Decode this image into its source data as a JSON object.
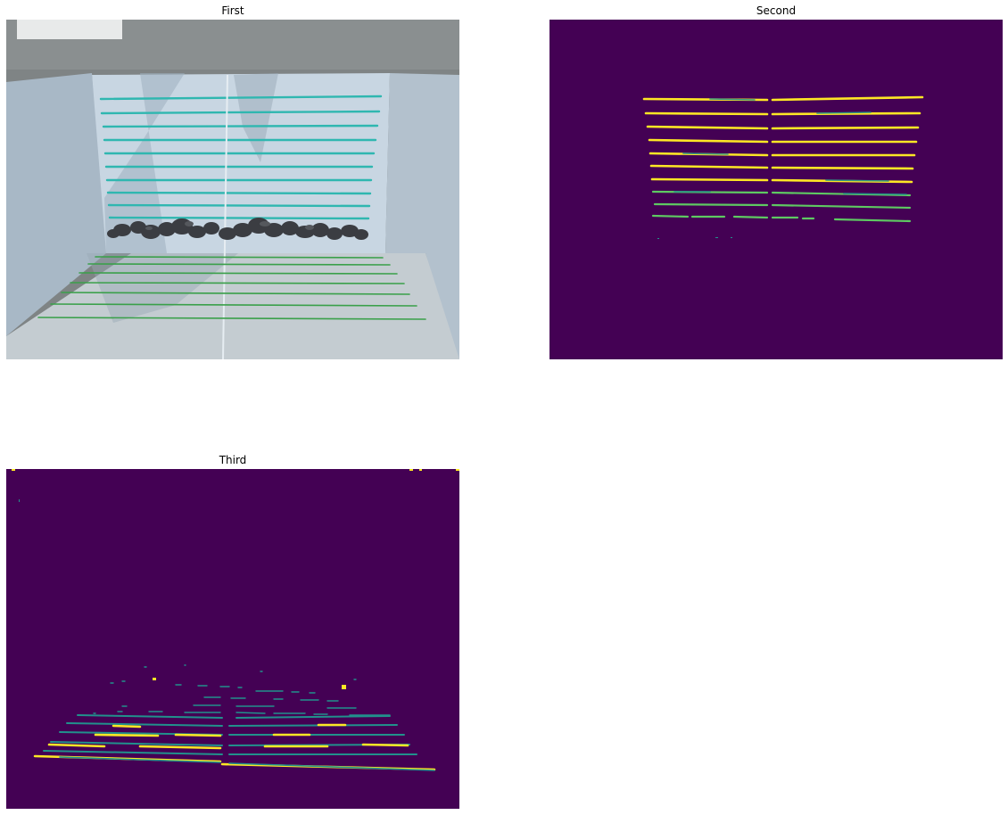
{
  "panels": {
    "first": {
      "title": "First"
    },
    "second": {
      "title": "Second"
    },
    "third": {
      "title": "Third"
    }
  },
  "colors": {
    "mask_background": "#440154",
    "mask_high": "#fde725",
    "mask_mid": "#21918c",
    "mask_mid_light": "#5ec962",
    "wall_stripe": "#2fb7b0",
    "floor_stripe": "#3aa04a",
    "board": "#c9d7e4",
    "backdrop": "#7e8384",
    "rocks": "#3a3c40"
  }
}
